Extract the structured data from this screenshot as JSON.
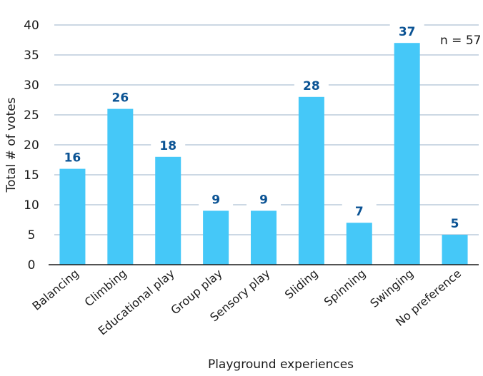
{
  "chart_data": {
    "type": "bar",
    "title": "",
    "xlabel": "Playground experiences",
    "ylabel": "Total # of votes",
    "categories": [
      "Balancing",
      "Climbing",
      "Educational play",
      "Group play",
      "Sensory play",
      "Sliding",
      "Spinning",
      "Swinging",
      "No preference"
    ],
    "values": [
      16,
      26,
      18,
      9,
      9,
      28,
      7,
      37,
      5
    ],
    "ylim": [
      0,
      40
    ],
    "yticks": [
      0,
      5,
      10,
      15,
      20,
      25,
      30,
      35,
      40
    ],
    "grid": true,
    "annotation": "n = 57",
    "colors": {
      "bar": "#45c8f8",
      "value_label": "#0b5394",
      "grid": "#9ab0c8",
      "axis": "#1a1a1a"
    }
  }
}
